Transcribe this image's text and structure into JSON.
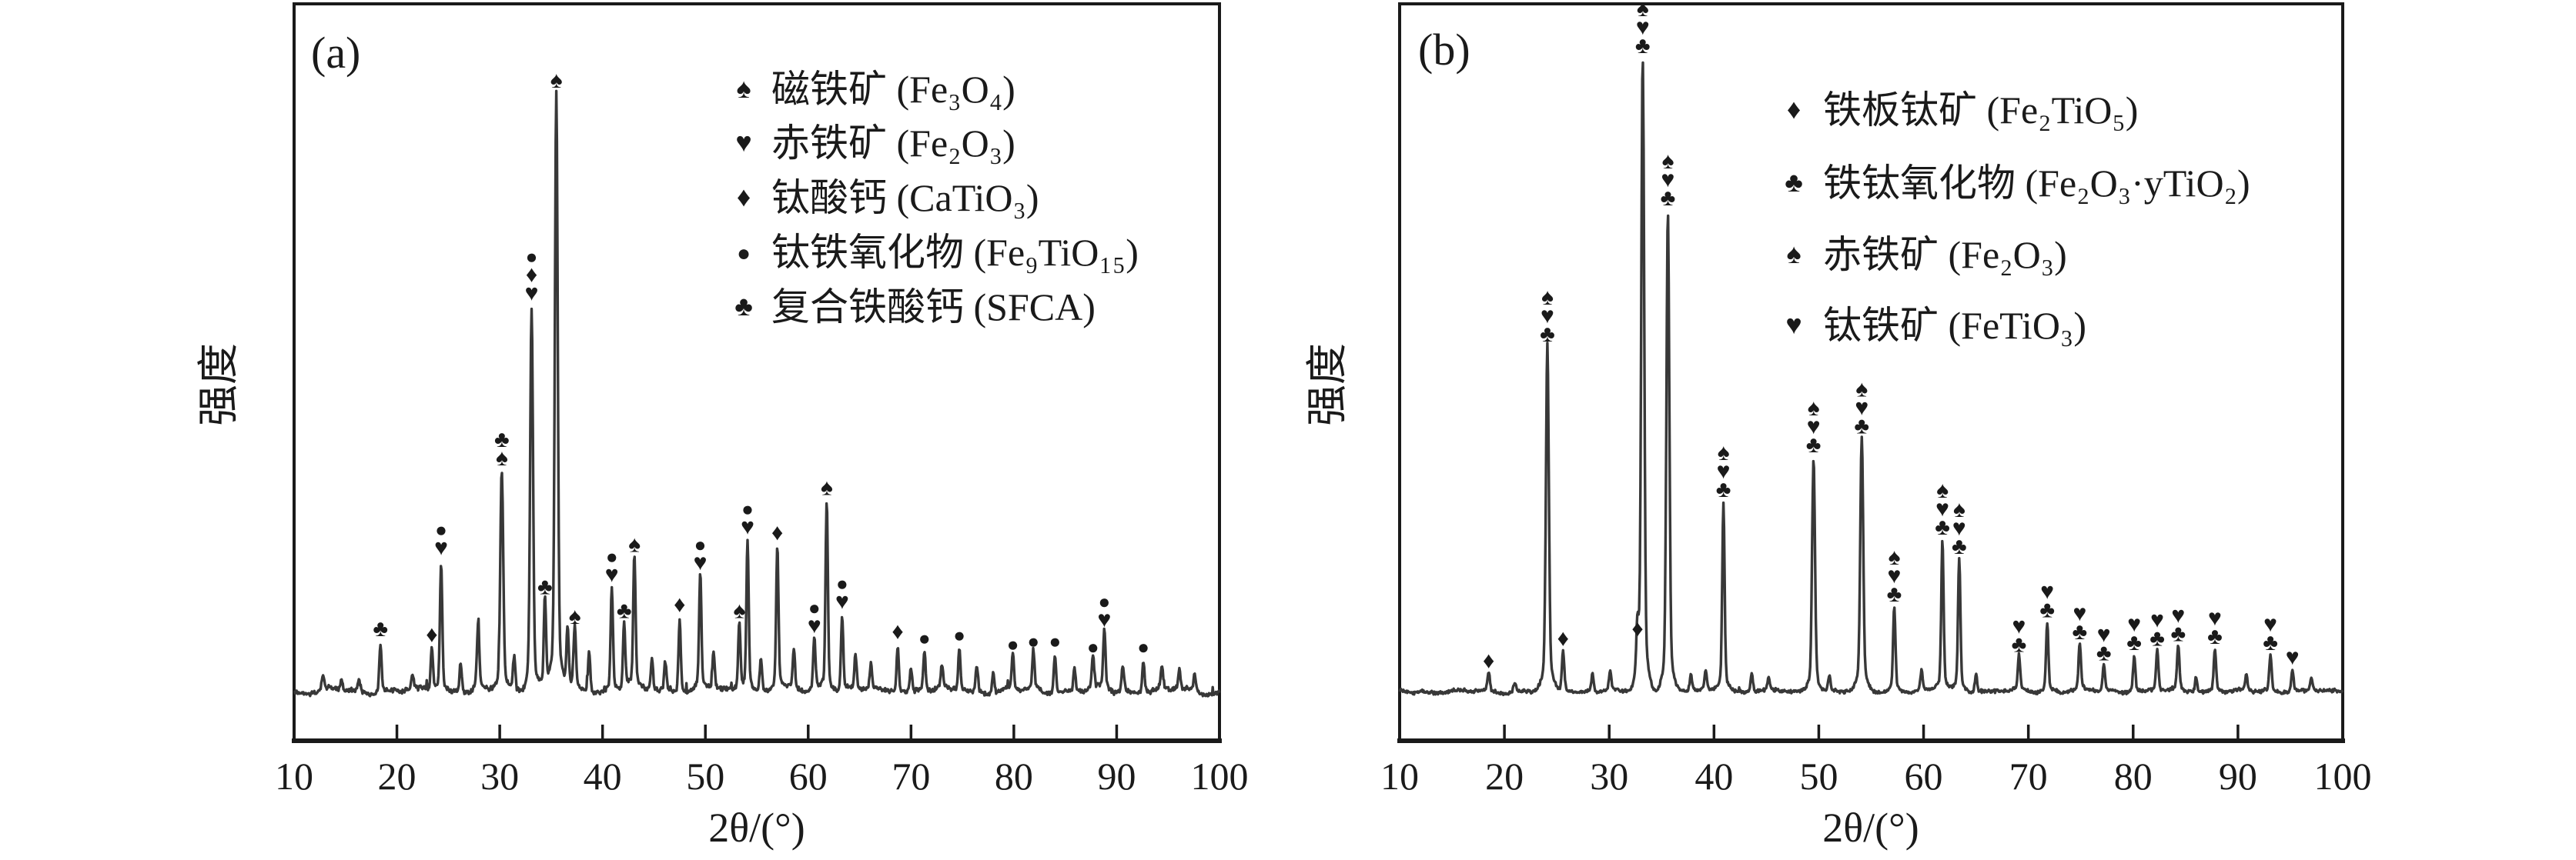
{
  "figure": {
    "background": "#ffffff",
    "frame_color": "#1a1a1a",
    "trace_color": "#383838",
    "description_visible_text_only": true
  },
  "chart_data": [
    {
      "type": "line",
      "panel_label": "(a)",
      "xlabel": "2θ/(°)",
      "ylabel": "强度",
      "xlim": [
        10,
        100
      ],
      "x_ticks": [
        10,
        20,
        30,
        40,
        50,
        60,
        70,
        80,
        90,
        100
      ],
      "grid": false,
      "legend_position": "upper-right-inside",
      "marker_colors": {
        "spade": "#E2614B",
        "heart": "#D4294E",
        "diamond": "#7A46AE",
        "circle": "#47A55E",
        "club": "#4A90D2"
      },
      "legend": [
        {
          "marker": "spade",
          "glyph": "♠",
          "color": "#E2614B",
          "label": "磁铁矿 (Fe₃O₄)"
        },
        {
          "marker": "heart",
          "glyph": "♥",
          "color": "#D4294E",
          "label": "赤铁矿 (Fe₂O₃)"
        },
        {
          "marker": "diamond",
          "glyph": "♦",
          "color": "#7A46AE",
          "label": "钛酸钙 (CaTiO₃)"
        },
        {
          "marker": "circle",
          "glyph": "●",
          "color": "#47A55E",
          "label": "钛铁氧化物 (Fe₉TiO₁₅)"
        },
        {
          "marker": "club",
          "glyph": "♣",
          "color": "#4A90D2",
          "label": "复合铁酸钙 (SFCA)"
        }
      ],
      "peaks": [
        {
          "two_theta": 12.8,
          "rel_intensity": 0.025,
          "markers": []
        },
        {
          "two_theta": 14.6,
          "rel_intensity": 0.02,
          "markers": []
        },
        {
          "two_theta": 16.3,
          "rel_intensity": 0.02,
          "markers": []
        },
        {
          "two_theta": 18.4,
          "rel_intensity": 0.085,
          "markers": [
            "club"
          ]
        },
        {
          "two_theta": 21.5,
          "rel_intensity": 0.025,
          "markers": []
        },
        {
          "two_theta": 23.4,
          "rel_intensity": 0.075,
          "markers": [
            "diamond"
          ]
        },
        {
          "two_theta": 24.3,
          "rel_intensity": 0.22,
          "markers": [
            "circle",
            "heart"
          ]
        },
        {
          "two_theta": 26.2,
          "rel_intensity": 0.05,
          "markers": []
        },
        {
          "two_theta": 27.9,
          "rel_intensity": 0.11,
          "markers": []
        },
        {
          "two_theta": 30.2,
          "rel_intensity": 0.37,
          "markers": [
            "club",
            "spade"
          ]
        },
        {
          "two_theta": 31.4,
          "rel_intensity": 0.06,
          "markers": []
        },
        {
          "two_theta": 33.1,
          "rel_intensity": 0.645,
          "markers": [
            "circle",
            "diamond",
            "heart"
          ]
        },
        {
          "two_theta": 34.4,
          "rel_intensity": 0.155,
          "markers": [
            "club"
          ]
        },
        {
          "two_theta": 35.5,
          "rel_intensity": 1.0,
          "markers": [
            "spade"
          ]
        },
        {
          "two_theta": 36.6,
          "rel_intensity": 0.1,
          "markers": []
        },
        {
          "two_theta": 37.3,
          "rel_intensity": 0.105,
          "markers": [
            "spade"
          ]
        },
        {
          "two_theta": 38.7,
          "rel_intensity": 0.07,
          "markers": []
        },
        {
          "two_theta": 40.9,
          "rel_intensity": 0.175,
          "markers": [
            "circle",
            "heart"
          ]
        },
        {
          "two_theta": 42.1,
          "rel_intensity": 0.115,
          "markers": [
            "club"
          ]
        },
        {
          "two_theta": 43.1,
          "rel_intensity": 0.225,
          "markers": [
            "spade"
          ]
        },
        {
          "two_theta": 44.8,
          "rel_intensity": 0.055,
          "markers": []
        },
        {
          "two_theta": 46.1,
          "rel_intensity": 0.05,
          "markers": []
        },
        {
          "two_theta": 47.5,
          "rel_intensity": 0.125,
          "markers": [
            "diamond"
          ]
        },
        {
          "two_theta": 49.5,
          "rel_intensity": 0.195,
          "markers": [
            "circle",
            "heart"
          ]
        },
        {
          "two_theta": 50.8,
          "rel_intensity": 0.065,
          "markers": []
        },
        {
          "two_theta": 53.3,
          "rel_intensity": 0.115,
          "markers": [
            "spade"
          ]
        },
        {
          "two_theta": 54.1,
          "rel_intensity": 0.255,
          "markers": [
            "circle",
            "heart"
          ]
        },
        {
          "two_theta": 55.4,
          "rel_intensity": 0.055,
          "markers": []
        },
        {
          "two_theta": 57.0,
          "rel_intensity": 0.245,
          "markers": [
            "diamond"
          ]
        },
        {
          "two_theta": 58.6,
          "rel_intensity": 0.065,
          "markers": []
        },
        {
          "two_theta": 60.6,
          "rel_intensity": 0.09,
          "markers": [
            "circle",
            "heart"
          ]
        },
        {
          "two_theta": 61.8,
          "rel_intensity": 0.32,
          "markers": [
            "spade"
          ]
        },
        {
          "two_theta": 63.3,
          "rel_intensity": 0.13,
          "markers": [
            "circle",
            "heart"
          ]
        },
        {
          "two_theta": 64.6,
          "rel_intensity": 0.06,
          "markers": []
        },
        {
          "two_theta": 66.1,
          "rel_intensity": 0.045,
          "markers": []
        },
        {
          "two_theta": 68.7,
          "rel_intensity": 0.08,
          "markers": [
            "diamond"
          ]
        },
        {
          "two_theta": 70.0,
          "rel_intensity": 0.04,
          "markers": []
        },
        {
          "two_theta": 71.3,
          "rel_intensity": 0.07,
          "markers": [
            "circle"
          ]
        },
        {
          "two_theta": 73.0,
          "rel_intensity": 0.04,
          "markers": []
        },
        {
          "two_theta": 74.7,
          "rel_intensity": 0.075,
          "markers": [
            "circle"
          ]
        },
        {
          "two_theta": 76.4,
          "rel_intensity": 0.045,
          "markers": []
        },
        {
          "two_theta": 78.0,
          "rel_intensity": 0.035,
          "markers": []
        },
        {
          "two_theta": 79.9,
          "rel_intensity": 0.06,
          "markers": [
            "circle"
          ]
        },
        {
          "two_theta": 81.9,
          "rel_intensity": 0.065,
          "markers": [
            "circle"
          ]
        },
        {
          "two_theta": 84.0,
          "rel_intensity": 0.065,
          "markers": [
            "circle"
          ]
        },
        {
          "two_theta": 85.9,
          "rel_intensity": 0.04,
          "markers": []
        },
        {
          "two_theta": 87.7,
          "rel_intensity": 0.055,
          "markers": [
            "circle"
          ]
        },
        {
          "two_theta": 88.8,
          "rel_intensity": 0.1,
          "markers": [
            "circle",
            "heart"
          ]
        },
        {
          "two_theta": 90.6,
          "rel_intensity": 0.045,
          "markers": []
        },
        {
          "two_theta": 92.6,
          "rel_intensity": 0.055,
          "markers": [
            "circle"
          ]
        },
        {
          "two_theta": 94.4,
          "rel_intensity": 0.04,
          "markers": []
        },
        {
          "two_theta": 96.1,
          "rel_intensity": 0.035,
          "markers": []
        },
        {
          "two_theta": 97.6,
          "rel_intensity": 0.03,
          "markers": []
        }
      ]
    },
    {
      "type": "line",
      "panel_label": "(b)",
      "xlabel": "2θ/(°)",
      "ylabel": "强度",
      "xlim": [
        10,
        100
      ],
      "x_ticks": [
        10,
        20,
        30,
        40,
        50,
        60,
        70,
        80,
        90,
        100
      ],
      "grid": false,
      "legend_position": "upper-right-inside",
      "marker_colors": {
        "diamond": "#3DB04C",
        "club": "#4A90D2",
        "spade": "#141414",
        "heart": "#D4294E"
      },
      "legend": [
        {
          "marker": "diamond",
          "glyph": "♦",
          "color": "#3DB04C",
          "label": "铁板钛矿 (Fe₂TiO₅)"
        },
        {
          "marker": "club",
          "glyph": "♣",
          "color": "#4A90D2",
          "label": "铁钛氧化物 (Fe₂O₃·yTiO₂)"
        },
        {
          "marker": "spade",
          "glyph": "♠",
          "color": "#141414",
          "label": "赤铁矿 (Fe₂O₃)"
        },
        {
          "marker": "heart",
          "glyph": "♥",
          "color": "#D4294E",
          "label": "钛铁矿 (FeTiO₃)"
        }
      ],
      "peaks": [
        {
          "two_theta": 18.5,
          "rel_intensity": 0.03,
          "markers": [
            "diamond"
          ]
        },
        {
          "two_theta": 21.0,
          "rel_intensity": 0.015,
          "markers": []
        },
        {
          "two_theta": 24.1,
          "rel_intensity": 0.545,
          "markers": [
            "spade",
            "heart",
            "club"
          ]
        },
        {
          "two_theta": 25.6,
          "rel_intensity": 0.065,
          "markers": [
            "diamond"
          ]
        },
        {
          "two_theta": 28.4,
          "rel_intensity": 0.03,
          "markers": []
        },
        {
          "two_theta": 30.1,
          "rel_intensity": 0.03,
          "markers": []
        },
        {
          "two_theta": 32.7,
          "rel_intensity": 0.08,
          "markers": [
            "diamond"
          ]
        },
        {
          "two_theta": 33.2,
          "rel_intensity": 1.0,
          "markers": [
            "spade",
            "heart",
            "club"
          ]
        },
        {
          "two_theta": 35.6,
          "rel_intensity": 0.76,
          "markers": [
            "spade",
            "heart",
            "club"
          ]
        },
        {
          "two_theta": 37.8,
          "rel_intensity": 0.025,
          "markers": []
        },
        {
          "two_theta": 39.2,
          "rel_intensity": 0.03,
          "markers": []
        },
        {
          "two_theta": 40.9,
          "rel_intensity": 0.3,
          "markers": [
            "spade",
            "heart",
            "club"
          ]
        },
        {
          "two_theta": 43.6,
          "rel_intensity": 0.03,
          "markers": []
        },
        {
          "two_theta": 45.2,
          "rel_intensity": 0.02,
          "markers": []
        },
        {
          "two_theta": 49.5,
          "rel_intensity": 0.37,
          "markers": [
            "spade",
            "heart",
            "club"
          ]
        },
        {
          "two_theta": 51.0,
          "rel_intensity": 0.025,
          "markers": []
        },
        {
          "two_theta": 54.1,
          "rel_intensity": 0.4,
          "markers": [
            "spade",
            "heart",
            "club"
          ]
        },
        {
          "two_theta": 57.2,
          "rel_intensity": 0.135,
          "markers": [
            "spade",
            "heart",
            "club"
          ]
        },
        {
          "two_theta": 59.8,
          "rel_intensity": 0.03,
          "markers": []
        },
        {
          "two_theta": 61.8,
          "rel_intensity": 0.24,
          "markers": [
            "spade",
            "heart",
            "club"
          ]
        },
        {
          "two_theta": 63.4,
          "rel_intensity": 0.21,
          "markers": [
            "spade",
            "heart",
            "club"
          ]
        },
        {
          "two_theta": 65.0,
          "rel_intensity": 0.03,
          "markers": []
        },
        {
          "two_theta": 69.1,
          "rel_intensity": 0.055,
          "markers": [
            "heart",
            "club"
          ]
        },
        {
          "two_theta": 71.8,
          "rel_intensity": 0.11,
          "markers": [
            "heart",
            "club"
          ]
        },
        {
          "two_theta": 74.9,
          "rel_intensity": 0.075,
          "markers": [
            "heart",
            "club"
          ]
        },
        {
          "two_theta": 77.2,
          "rel_intensity": 0.042,
          "markers": [
            "heart",
            "club"
          ]
        },
        {
          "two_theta": 80.1,
          "rel_intensity": 0.058,
          "markers": [
            "heart",
            "club"
          ]
        },
        {
          "two_theta": 82.3,
          "rel_intensity": 0.065,
          "markers": [
            "heart",
            "club"
          ]
        },
        {
          "two_theta": 84.3,
          "rel_intensity": 0.072,
          "markers": [
            "heart",
            "club"
          ]
        },
        {
          "two_theta": 86.0,
          "rel_intensity": 0.025,
          "markers": []
        },
        {
          "two_theta": 87.8,
          "rel_intensity": 0.068,
          "markers": [
            "heart",
            "club"
          ]
        },
        {
          "two_theta": 90.8,
          "rel_intensity": 0.025,
          "markers": []
        },
        {
          "two_theta": 93.1,
          "rel_intensity": 0.058,
          "markers": [
            "heart",
            "club"
          ]
        },
        {
          "two_theta": 95.2,
          "rel_intensity": 0.035,
          "markers": [
            "heart"
          ]
        },
        {
          "two_theta": 97.0,
          "rel_intensity": 0.02,
          "markers": []
        }
      ]
    }
  ]
}
